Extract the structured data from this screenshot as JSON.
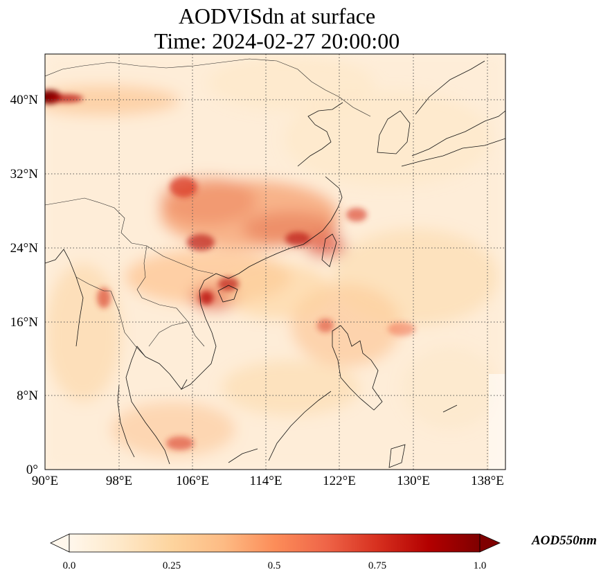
{
  "map": {
    "title": "AODVISdn at surface",
    "time_label": "Time: 2024-02-27 20:00:00",
    "lon_range": [
      90,
      140
    ],
    "lat_range": [
      0,
      44
    ],
    "lon_ticks": [
      "90°E",
      "98°E",
      "106°E",
      "114°E",
      "122°E",
      "130°E",
      "138°E"
    ],
    "lat_ticks": [
      "0°",
      "8°N",
      "16°N",
      "24°N",
      "32°N",
      "40°N"
    ],
    "gridlines": "dotted",
    "coastlines": true,
    "country_borders": true,
    "variable": "AODVISdn",
    "level": "surface"
  },
  "colorbar": {
    "label": "AOD550nm",
    "min": 0.0,
    "max": 1.0,
    "ticks": [
      "0.0",
      "0.25",
      "0.5",
      "0.75",
      "1.0"
    ],
    "extend": "both",
    "colormap": "OrRd",
    "orientation": "horizontal",
    "colors": [
      "#fff7ec",
      "#fee8c8",
      "#fdd49e",
      "#fdbb84",
      "#fc8d59",
      "#ef6548",
      "#d7301f",
      "#b30000",
      "#7f0000"
    ]
  }
}
